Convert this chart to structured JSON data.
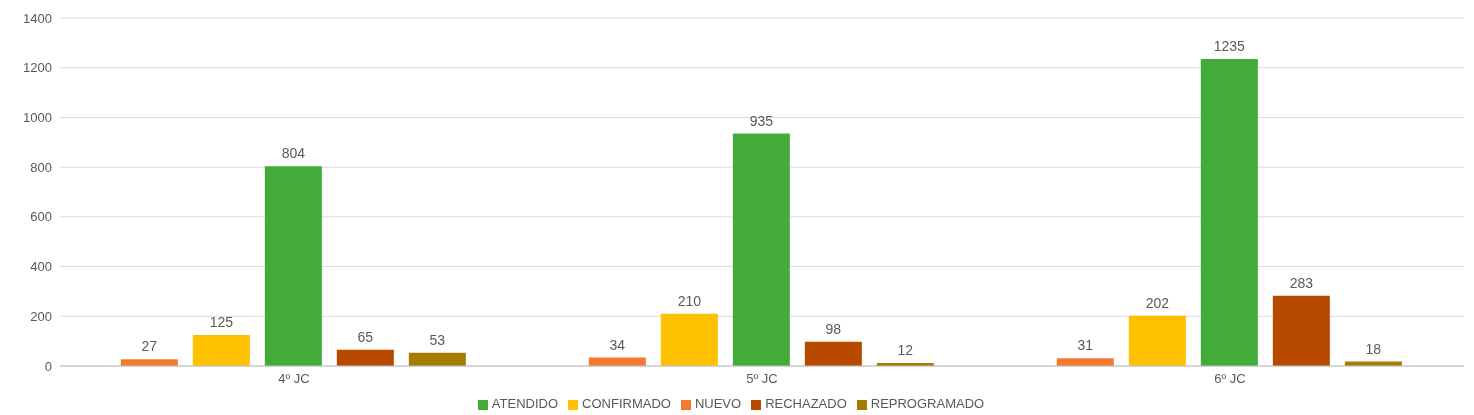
{
  "chart_data": {
    "type": "bar",
    "categories": [
      "4º JC",
      "5º JC",
      "6º JC"
    ],
    "series": [
      {
        "name": "NUEVO",
        "color": "#f47b2e",
        "values": [
          27,
          34,
          31
        ]
      },
      {
        "name": "CONFIRMADO",
        "color": "#ffc000",
        "values": [
          125,
          210,
          202
        ]
      },
      {
        "name": "ATENDIDO",
        "color": "#43ab3a",
        "values": [
          804,
          935,
          1235
        ]
      },
      {
        "name": "RECHAZADO",
        "color": "#b84a00",
        "values": [
          65,
          98,
          283
        ]
      },
      {
        "name": "REPROGRAMADO",
        "color": "#a67c00",
        "values": [
          53,
          12,
          18
        ]
      }
    ],
    "ylim": [
      0,
      1400
    ],
    "yticks": [
      0,
      200,
      400,
      600,
      800,
      1000,
      1200,
      1400
    ],
    "grid": "y",
    "legend": "bottom",
    "data_labels": true
  }
}
